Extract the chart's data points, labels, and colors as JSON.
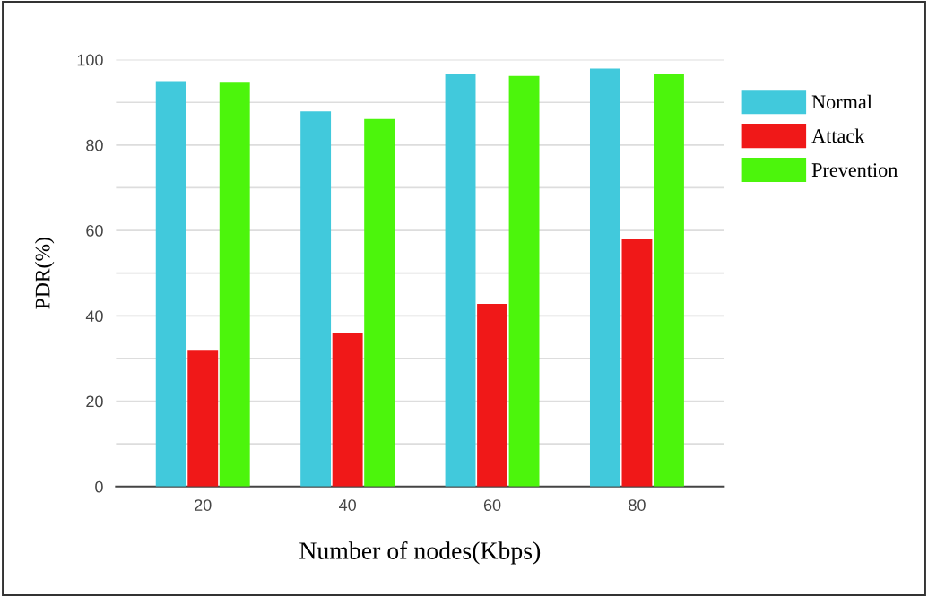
{
  "chart_data": {
    "type": "bar",
    "xlabel": "Number of nodes(Kbps)",
    "ylabel": "PDR(%)",
    "categories": [
      "20",
      "40",
      "60",
      "80"
    ],
    "series": [
      {
        "name": "Normal",
        "color": "#41c9dc",
        "values": [
          95.0,
          87.9,
          96.6,
          97.9
        ]
      },
      {
        "name": "Attack",
        "color": "#f01818",
        "values": [
          31.8,
          36.1,
          42.8,
          57.9
        ]
      },
      {
        "name": "Prevention",
        "color": "#4cf50c",
        "values": [
          94.6,
          86.1,
          96.2,
          96.6
        ]
      }
    ],
    "ylim": [
      0,
      100
    ],
    "yticks": [
      0,
      {
        "value": 10,
        "label": null
      },
      20,
      {
        "value": 30,
        "label": null
      },
      40,
      {
        "value": 50,
        "label": null
      },
      60,
      {
        "value": 70,
        "label": null
      },
      80,
      {
        "value": 90,
        "label": null
      },
      100
    ],
    "grid": "y",
    "legend": "top right"
  }
}
